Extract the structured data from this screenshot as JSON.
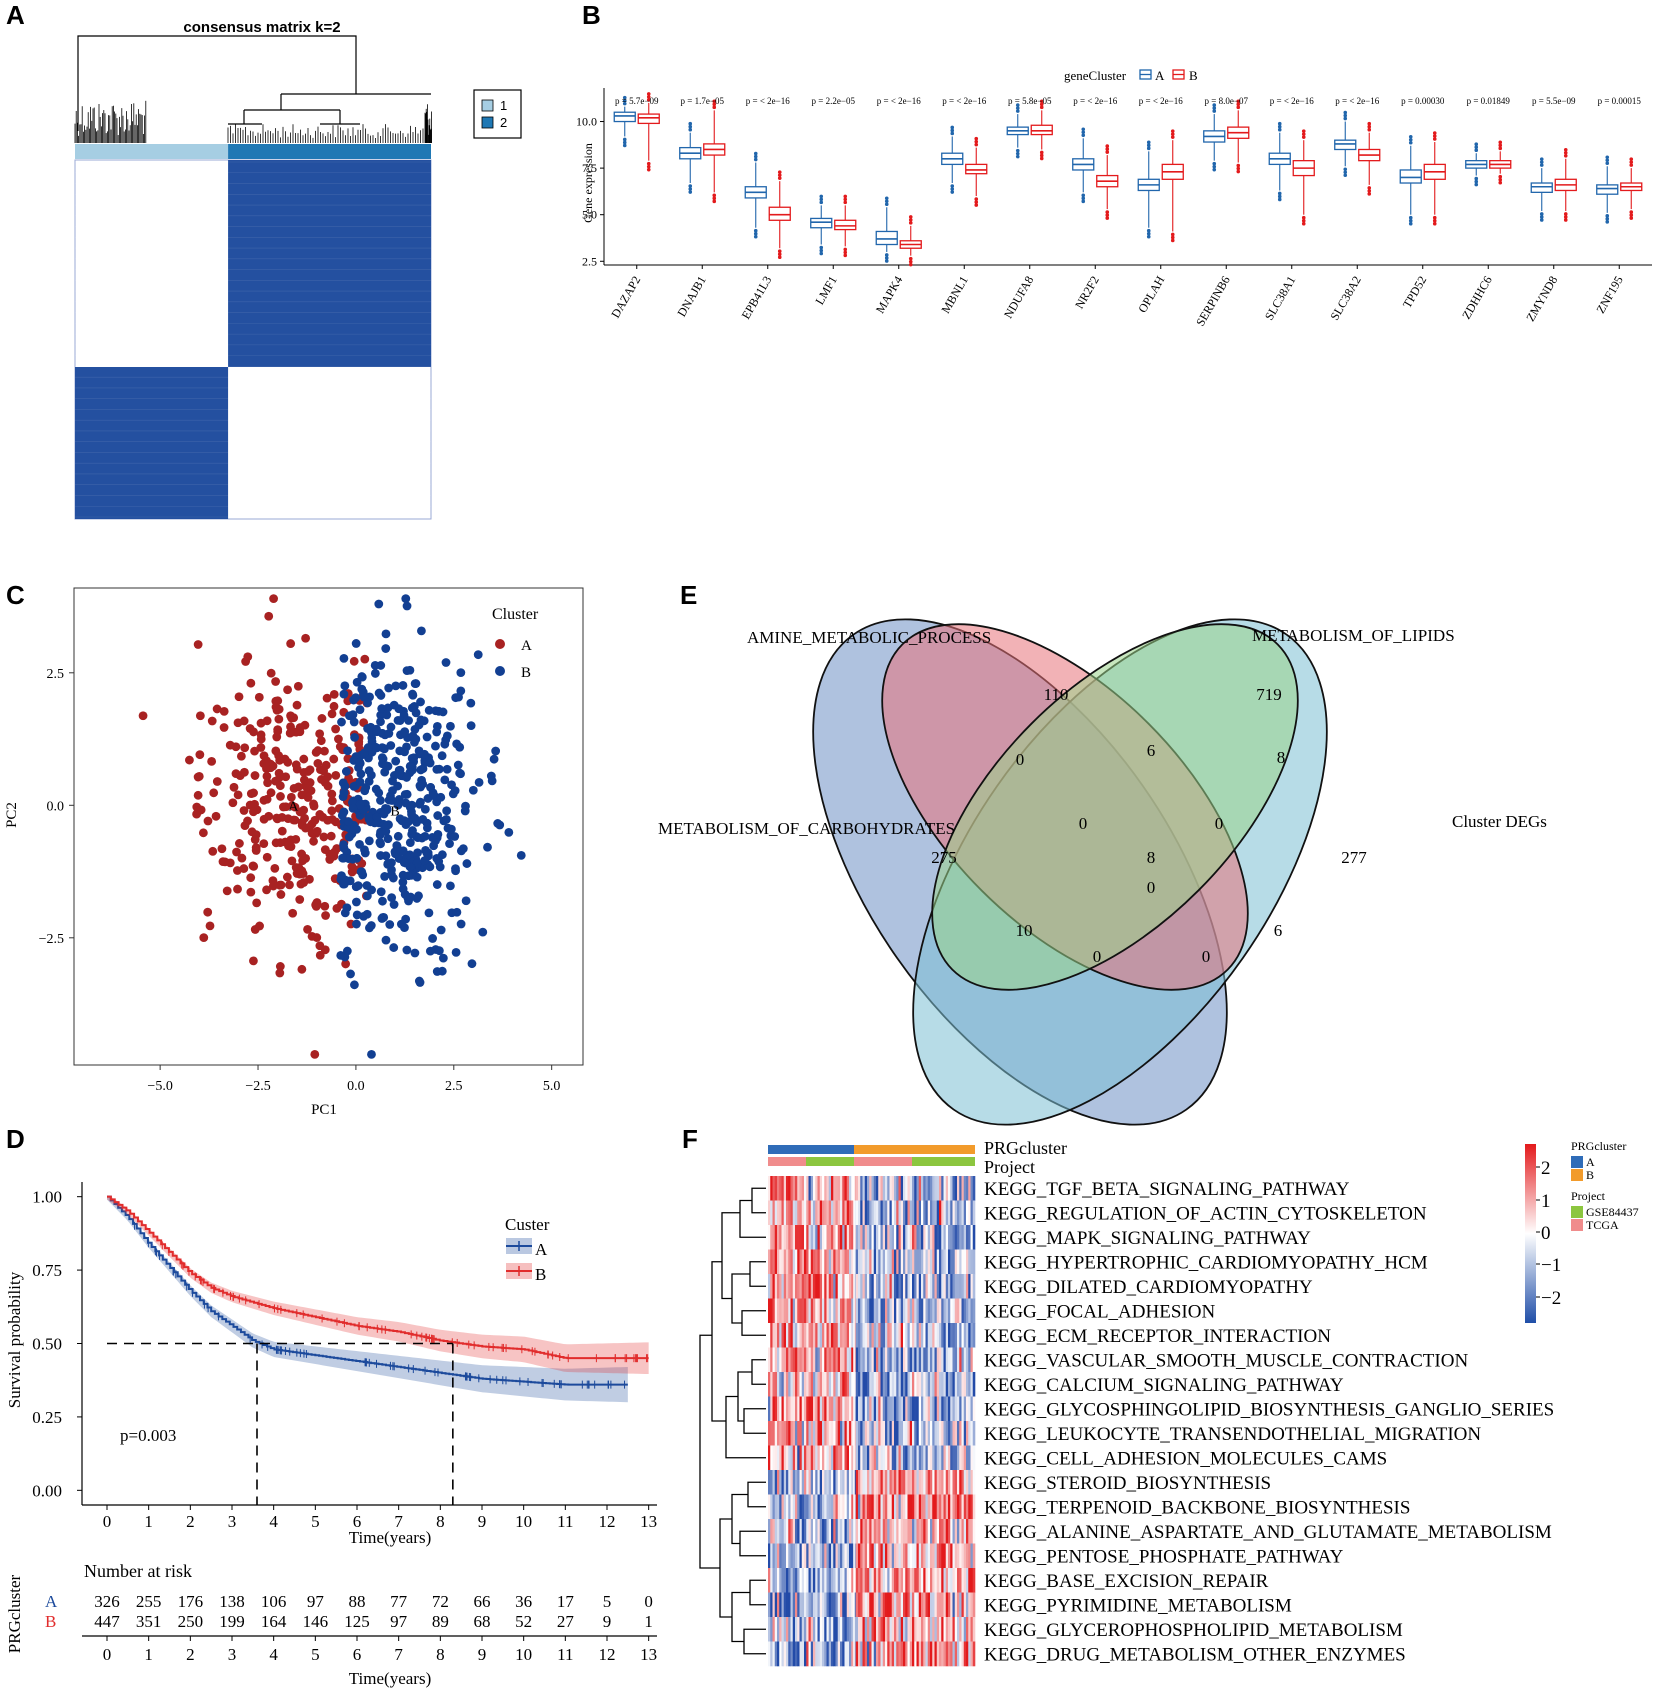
{
  "panels": {
    "a": "A",
    "b": "B",
    "c": "C",
    "d": "D",
    "e": "E",
    "f": "F"
  },
  "colors": {
    "cluster1": "#a6cee3",
    "cluster2": "#1f78b4",
    "consensus": "#2450a0",
    "groupA": "#2166ac",
    "groupB": "#e31a1c",
    "pcaA": "#a82222",
    "pcaB": "#123f92",
    "kmA": "#1c4a9c",
    "kmB": "#e12c2c",
    "vennRed": "#e8727a",
    "vennGreen": "#9ad48a",
    "vennBlue": "#6e8fc4",
    "vennCyan": "#7cc0d4",
    "hmHigh": "#e31a1c",
    "hmLow": "#234ba8",
    "projGSE": "#8cc63f",
    "projTCGA": "#f08c8c",
    "prgA": "#2f6cb8",
    "prgB": "#f29b2b"
  },
  "chart_data": [
    {
      "panel": "A",
      "type": "heatmap",
      "title": "consensus matrix k=2",
      "legend": [
        "1",
        "2"
      ],
      "clusters": [
        {
          "label": "1",
          "fraction": 0.43
        },
        {
          "label": "2",
          "fraction": 0.57
        }
      ],
      "blocks": [
        [
          0,
          1
        ],
        [
          1,
          0
        ]
      ]
    },
    {
      "panel": "B",
      "type": "boxplot",
      "legend_title": "geneCluster",
      "legend": [
        "A",
        "B"
      ],
      "ylabel": "Gene expression",
      "ylim": [
        2.3,
        11.8
      ],
      "yticks": [
        2.5,
        5.0,
        7.5,
        10.0
      ],
      "ytick_labels": [
        "2.5",
        "5.0",
        "7.5",
        "10.0"
      ],
      "genes": [
        "DAZAP2",
        "DNAJB1",
        "EPB41L3",
        "LMF1",
        "MAPK4",
        "MBNL1",
        "NDUFA8",
        "NR2F2",
        "OPLAH",
        "SERPINB6",
        "SLC38A1",
        "SLC38A2",
        "TPD52",
        "ZDHHC6",
        "ZMYND8",
        "ZNF195"
      ],
      "pvalues": [
        "p = 5.7e−09",
        "p = 1.7e−05",
        "p = < 2e−16",
        "p = 2.2e−05",
        "p = < 2e−16",
        "p = < 2e−16",
        "p = 5.8e−05",
        "p = < 2e−16",
        "p = < 2e−16",
        "p = 8.0e−07",
        "p = < 2e−16",
        "p = < 2e−16",
        "p = 0.00030",
        "p = 0.01849",
        "p = 5.5e−09",
        "p = 0.00015"
      ],
      "seriesA": [
        [
          9.2,
          10.0,
          10.3,
          10.5,
          10.8
        ],
        [
          6.7,
          8.0,
          8.3,
          8.6,
          9.4
        ],
        [
          4.3,
          5.9,
          6.2,
          6.5,
          7.8
        ],
        [
          3.4,
          4.3,
          4.6,
          4.8,
          5.5
        ],
        [
          3.0,
          3.4,
          3.7,
          4.1,
          5.4
        ],
        [
          6.7,
          7.7,
          8.0,
          8.3,
          9.2
        ],
        [
          8.6,
          9.3,
          9.5,
          9.7,
          10.4
        ],
        [
          6.2,
          7.4,
          7.7,
          8.0,
          9.1
        ],
        [
          4.3,
          6.3,
          6.6,
          6.9,
          8.4
        ],
        [
          7.9,
          8.9,
          9.2,
          9.5,
          10.4
        ],
        [
          6.3,
          7.7,
          8.0,
          8.3,
          9.4
        ],
        [
          7.6,
          8.5,
          8.8,
          9.0,
          10.0
        ],
        [
          5.0,
          6.7,
          7.0,
          7.4,
          8.7
        ],
        [
          7.1,
          7.5,
          7.7,
          7.9,
          8.3
        ],
        [
          5.2,
          6.2,
          6.5,
          6.7,
          7.5
        ],
        [
          5.1,
          6.1,
          6.4,
          6.6,
          7.6
        ]
      ],
      "seriesB": [
        [
          7.9,
          9.9,
          10.2,
          10.4,
          11.0
        ],
        [
          6.2,
          8.2,
          8.5,
          8.8,
          10.6
        ],
        [
          3.2,
          4.7,
          5.0,
          5.4,
          6.8
        ],
        [
          3.3,
          4.2,
          4.4,
          4.7,
          5.5
        ],
        [
          2.8,
          3.2,
          3.4,
          3.6,
          4.4
        ],
        [
          6.0,
          7.2,
          7.4,
          7.7,
          8.6
        ],
        [
          8.5,
          9.3,
          9.5,
          9.8,
          10.6
        ],
        [
          5.3,
          6.5,
          6.8,
          7.1,
          8.2
        ],
        [
          4.1,
          6.9,
          7.3,
          7.7,
          9.0
        ],
        [
          7.8,
          9.1,
          9.4,
          9.7,
          10.6
        ],
        [
          5.0,
          7.1,
          7.5,
          7.9,
          9.0
        ],
        [
          6.6,
          7.9,
          8.2,
          8.5,
          9.4
        ],
        [
          5.0,
          6.9,
          7.3,
          7.7,
          8.9
        ],
        [
          7.2,
          7.5,
          7.7,
          7.9,
          8.4
        ],
        [
          5.2,
          6.3,
          6.6,
          6.9,
          8.0
        ],
        [
          5.3,
          6.3,
          6.5,
          6.7,
          7.5
        ]
      ]
    },
    {
      "panel": "C",
      "type": "scatter",
      "xlabel": "PC1",
      "ylabel": "PC2",
      "xlim": [
        -7.2,
        5.8
      ],
      "ylim": [
        -4.9,
        4.1
      ],
      "xticks": [
        -5.0,
        -2.5,
        0.0,
        2.5,
        5.0
      ],
      "xtick_labels": [
        "−5.0",
        "−2.5",
        "0.0",
        "2.5",
        "5.0"
      ],
      "yticks": [
        -2.5,
        0.0,
        2.5
      ],
      "ytick_labels": [
        "−2.5",
        "0.0",
        "2.5"
      ],
      "legend_title": "Cluster",
      "legend": [
        "A",
        "B"
      ],
      "centroidA": [
        -1.6,
        0.0
      ],
      "centroidB": [
        1.0,
        -0.1
      ],
      "n_points": [
        330,
        440
      ]
    },
    {
      "panel": "D",
      "type": "line",
      "title": "",
      "xlabel": "Time(years)",
      "ylabel": "Survival probability",
      "xlim": [
        -0.6,
        13.2
      ],
      "ylim": [
        -0.05,
        1.05
      ],
      "xticks": [
        0,
        1,
        2,
        3,
        4,
        5,
        6,
        7,
        8,
        9,
        10,
        11,
        12,
        13
      ],
      "yticks": [
        0.0,
        0.25,
        0.5,
        0.75,
        1.0
      ],
      "ytick_labels": [
        "0.00",
        "0.25",
        "0.50",
        "0.75",
        "1.00"
      ],
      "legend_title": "Custer",
      "legend": [
        "A",
        "B"
      ],
      "pvalue": "p=0.003",
      "medians": [
        3.6,
        8.3
      ],
      "series": [
        {
          "name": "A",
          "x": [
            0,
            0.5,
            1,
            1.5,
            2,
            2.5,
            3,
            3.5,
            4,
            5,
            6,
            7,
            8,
            9,
            10,
            11,
            12,
            12.5
          ],
          "y": [
            1.0,
            0.93,
            0.84,
            0.76,
            0.68,
            0.61,
            0.56,
            0.51,
            0.48,
            0.46,
            0.44,
            0.42,
            0.4,
            0.38,
            0.37,
            0.36,
            0.36,
            0.36
          ],
          "ci": 0.05
        },
        {
          "name": "B",
          "x": [
            0,
            0.5,
            1,
            1.5,
            2,
            2.5,
            3,
            4,
            5,
            6,
            7,
            8,
            9,
            10,
            11,
            12,
            13
          ],
          "y": [
            1.0,
            0.95,
            0.88,
            0.81,
            0.74,
            0.69,
            0.66,
            0.62,
            0.59,
            0.56,
            0.54,
            0.51,
            0.49,
            0.48,
            0.45,
            0.45,
            0.45
          ],
          "ci": 0.045
        }
      ],
      "risk_table": {
        "title": "Number at risk",
        "ylabel": "PRGcluster",
        "rows": [
          {
            "label": "A",
            "values": [
              "326",
              "255",
              "176",
              "138",
              "106",
              "97",
              "88",
              "77",
              "72",
              "66",
              "36",
              "17",
              "5",
              "0"
            ]
          },
          {
            "label": "B",
            "values": [
              "447",
              "351",
              "250",
              "199",
              "164",
              "146",
              "125",
              "97",
              "89",
              "68",
              "52",
              "27",
              "9",
              "1"
            ]
          }
        ],
        "xlabel": "Time(years)"
      }
    },
    {
      "panel": "E",
      "type": "venn",
      "sets": [
        "AMINE_METABOLIC_PROCESS",
        "METABOLISM_OF_LIPIDS",
        "METABOLISM_OF_CARBOHYDRATES",
        "Cluster DEGs"
      ],
      "counts": [
        "110",
        "719",
        "275",
        "277",
        "0",
        "6",
        "8",
        "0",
        "0",
        "8",
        "0",
        "10",
        "6",
        "0",
        "0"
      ]
    },
    {
      "panel": "F",
      "type": "heatmap",
      "annotation_labels": [
        "PRGcluster",
        "Project"
      ],
      "legend_prg_title": "PRGcluster",
      "legend_prg": [
        "A",
        "B"
      ],
      "legend_proj_title": "Project",
      "legend_proj": [
        "GSE84437",
        "TCGA"
      ],
      "scale_ticks": [
        "2",
        "1",
        "0",
        "−1",
        "−2"
      ],
      "rows": [
        "KEGG_TGF_BETA_SIGNALING_PATHWAY",
        "KEGG_REGULATION_OF_ACTIN_CYTOSKELETON",
        "KEGG_MAPK_SIGNALING_PATHWAY",
        "KEGG_HYPERTROPHIC_CARDIOMYOPATHY_HCM",
        "KEGG_DILATED_CARDIOMYOPATHY",
        "KEGG_FOCAL_ADHESION",
        "KEGG_ECM_RECEPTOR_INTERACTION",
        "KEGG_VASCULAR_SMOOTH_MUSCLE_CONTRACTION",
        "KEGG_CALCIUM_SIGNALING_PATHWAY",
        "KEGG_GLYCOSPHINGOLIPID_BIOSYNTHESIS_GANGLIO_SERIES",
        "KEGG_LEUKOCYTE_TRANSENDOTHELIAL_MIGRATION",
        "KEGG_CELL_ADHESION_MOLECULES_CAMS",
        "KEGG_STEROID_BIOSYNTHESIS",
        "KEGG_TERPENOID_BACKBONE_BIOSYNTHESIS",
        "KEGG_ALANINE_ASPARTATE_AND_GLUTAMATE_METABOLISM",
        "KEGG_PENTOSE_PHOSPHATE_PATHWAY",
        "KEGG_BASE_EXCISION_REPAIR",
        "KEGG_PYRIMIDINE_METABOLISM",
        "KEGG_GLYCEROPHOSPHOLIPID_METABOLISM",
        "KEGG_DRUG_METABOLISM_OTHER_ENZYMES"
      ],
      "row_pattern": [
        1,
        1,
        1,
        1,
        1,
        1,
        1,
        1,
        1,
        1,
        1,
        1,
        -1,
        -1,
        -1,
        -1,
        -1,
        -1,
        -1,
        -1
      ]
    }
  ]
}
